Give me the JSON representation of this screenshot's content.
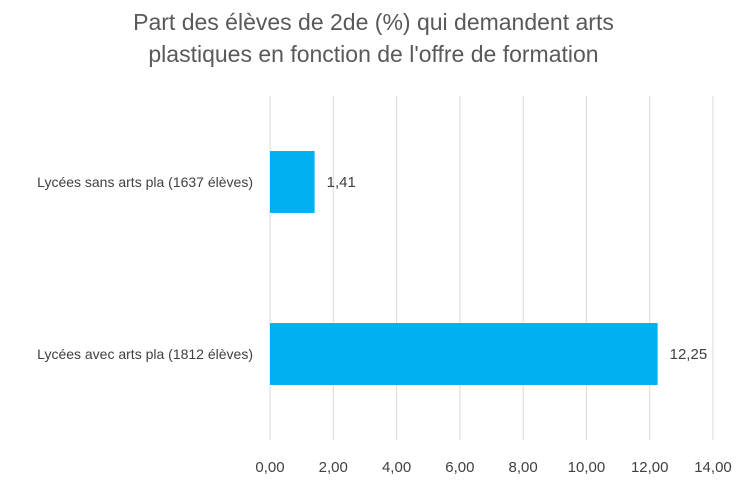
{
  "chart_data": {
    "type": "bar",
    "orientation": "horizontal",
    "title_lines": [
      "Part des élèves de 2de (%) qui demandent arts",
      "plastiques en fonction de l'offre de formation"
    ],
    "categories": [
      "Lycées sans arts pla (1637 élèves)",
      "Lycées avec arts pla (1812 élèves)"
    ],
    "values": [
      1.41,
      12.25
    ],
    "data_labels": [
      "1,41",
      "12,25"
    ],
    "xlim": [
      0,
      14
    ],
    "x_ticks": [
      0,
      2,
      4,
      6,
      8,
      10,
      12,
      14
    ],
    "x_tick_labels": [
      "0,00",
      "2,00",
      "4,00",
      "6,00",
      "8,00",
      "10,00",
      "12,00",
      "14,00"
    ],
    "grid": "vertical",
    "legend": "none",
    "colors": {
      "bar": "#00B0F0",
      "grid": "#D9D9D9",
      "text": "#595959"
    }
  }
}
